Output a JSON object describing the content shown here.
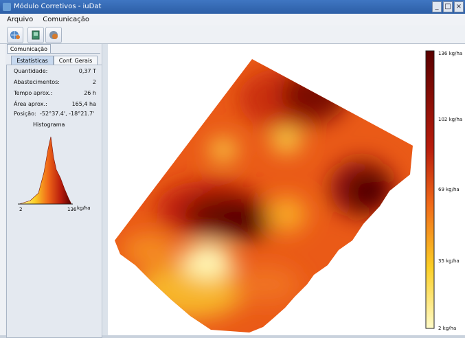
{
  "window": {
    "title": "Módulo Corretivos - iuDat",
    "controls": [
      "_",
      "□",
      "×"
    ]
  },
  "menu": [
    "Arquivo",
    "Comunicação"
  ],
  "toolbar": {
    "buttons": [
      {
        "name": "globe-settings-icon"
      },
      {
        "name": "document-icon"
      },
      {
        "name": "export-icon"
      }
    ]
  },
  "tabs": {
    "outer": "Comunicação",
    "inner": [
      "Estatísticas",
      "Conf. Gerais"
    ]
  },
  "stats": [
    {
      "label": "Quantidade:",
      "value": "0,37 T"
    },
    {
      "label": "Abastecimentos:",
      "value": "2"
    },
    {
      "label": "Tempo aprox.:",
      "value": "26 h"
    },
    {
      "label": "Área aprox.:",
      "value": "165,4 ha"
    },
    {
      "label": "Posição:",
      "value": "-52°37.4', -18°21.7'"
    }
  ],
  "histogram": {
    "title": "Histograma",
    "axis_min": "2",
    "axis_max": "136",
    "unit": "kg/ha"
  },
  "legend": {
    "labels": [
      "136 kg/ha",
      "102 kg/ha",
      "69 kg/ha",
      "35 kg/ha",
      "2 kg/ha"
    ],
    "colors": [
      "#5a0000",
      "#b81c0c",
      "#f06818",
      "#fbcf26",
      "#fffbc8"
    ]
  }
}
